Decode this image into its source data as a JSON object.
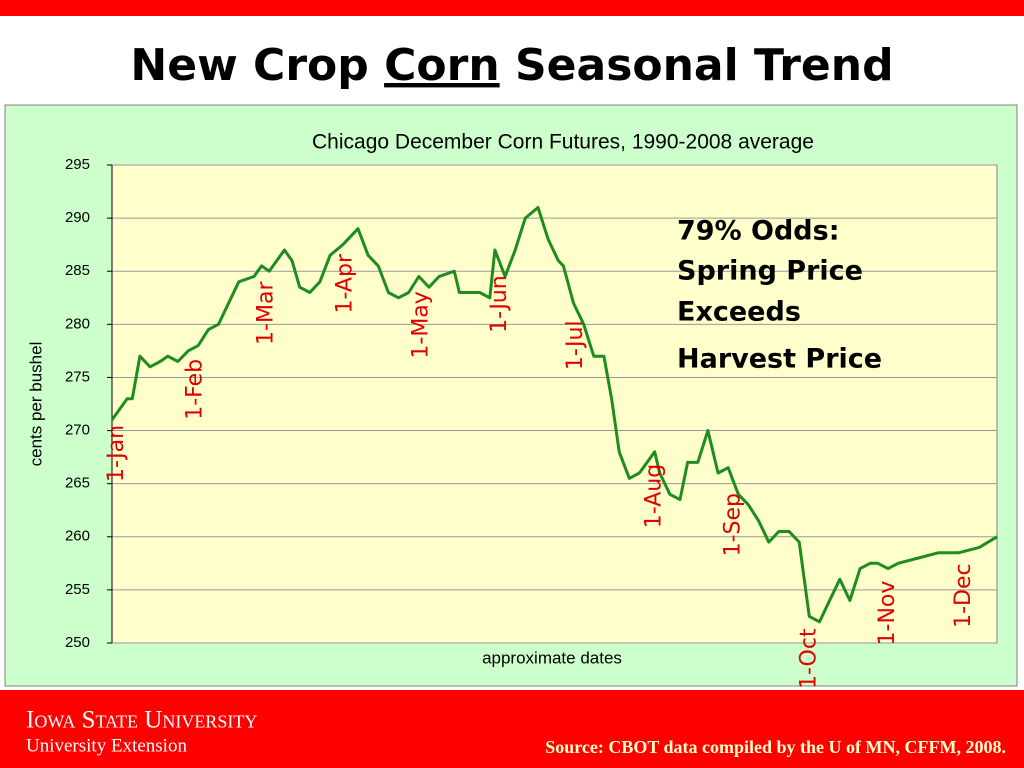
{
  "slide_title": {
    "before": "New Crop",
    "underlined": "Corn",
    "after": "Seasonal Trend"
  },
  "chart_data": {
    "type": "line",
    "title": "Chicago December Corn Futures, 1990-2008 average",
    "y_label": "cents per bushel",
    "x_label": "approximate dates",
    "color": "#1e8c1e",
    "x": [
      -1,
      2,
      5,
      7,
      10,
      14,
      18,
      21,
      25,
      29,
      33,
      37,
      41,
      45,
      49,
      55,
      58,
      61,
      67,
      70,
      73,
      77,
      81,
      85,
      90,
      96,
      100,
      104,
      108,
      112,
      116,
      120,
      124,
      128,
      134,
      136,
      140,
      144,
      148,
      150,
      154,
      158,
      162,
      167,
      171,
      175,
      177,
      181,
      185,
      189,
      193,
      196,
      199,
      203,
      207,
      213,
      215,
      219,
      223,
      226,
      230,
      234,
      238,
      242,
      246,
      250,
      254,
      258,
      262,
      266,
      270,
      274,
      278,
      282,
      286,
      290,
      294,
      298,
      301,
      305,
      309,
      317,
      325,
      333,
      341,
      348
    ],
    "values": [
      271,
      272,
      273,
      273,
      277,
      276,
      276.5,
      277,
      276.5,
      277.5,
      278,
      279.5,
      280,
      282,
      284,
      284.5,
      285.5,
      285,
      287,
      286,
      283.5,
      283,
      284,
      286.5,
      287.5,
      289,
      286.5,
      285.5,
      283,
      282.5,
      283,
      284.5,
      283.5,
      284.5,
      285,
      283,
      283,
      283,
      282.5,
      287,
      284.5,
      287,
      290,
      291,
      288,
      286,
      285.5,
      282,
      280,
      277,
      277,
      273,
      268,
      265.5,
      266,
      268,
      266,
      264,
      263.5,
      267,
      267,
      270,
      266,
      266.5,
      264,
      263,
      261.5,
      259.5,
      260.5,
      260.5,
      259.5,
      252.5,
      252,
      254,
      256,
      254,
      257,
      257.5,
      257.5,
      257,
      257.5,
      258,
      258.5,
      258.5,
      259,
      260
    ],
    "xlim": [
      -1,
      348
    ],
    "ylim": [
      250,
      295
    ],
    "yticks": [
      250,
      255,
      260,
      265,
      270,
      275,
      280,
      285,
      290,
      295
    ],
    "grid": true,
    "date_labels": [
      {
        "label": "1-Jan",
        "x": 1
      },
      {
        "label": "1-Feb",
        "x": 32
      },
      {
        "label": "1-Mar",
        "x": 60
      },
      {
        "label": "1-Apr",
        "x": 91
      },
      {
        "label": "1-May",
        "x": 121
      },
      {
        "label": "1-Jun",
        "x": 152
      },
      {
        "label": "1-Jul",
        "x": 182
      },
      {
        "label": "1-Aug",
        "x": 213
      },
      {
        "label": "1-Sep",
        "x": 244
      },
      {
        "label": "1-Oct",
        "x": 274
      },
      {
        "label": "1-Nov",
        "x": 305
      },
      {
        "label": "1-Dec",
        "x": 335
      }
    ],
    "annotation": [
      "79% Odds:",
      "Spring Price",
      "Exceeds",
      "Harvest Price"
    ]
  },
  "footer": {
    "university": "Iowa State University",
    "unit": "University Extension",
    "source": "Source:  CBOT data compiled by the U of MN, CFFM, 2008."
  }
}
